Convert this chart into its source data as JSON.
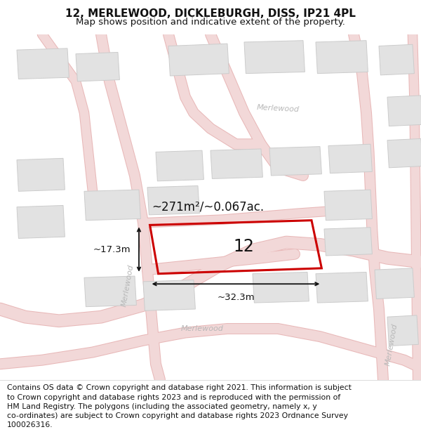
{
  "title": "12, MERLEWOOD, DICKLEBURGH, DISS, IP21 4PL",
  "subtitle": "Map shows position and indicative extent of the property.",
  "footer": "Contains OS data © Crown copyright and database right 2021. This information is subject\nto Crown copyright and database rights 2023 and is reproduced with the permission of\nHM Land Registry. The polygons (including the associated geometry, namely x, y\nco-ordinates) are subject to Crown copyright and database rights 2023 Ordnance Survey\n100026316.",
  "map_bg": "#f7f7f5",
  "road_fill": "#f2d8d8",
  "road_edge": "#e8b8b8",
  "building_fill": "#e2e2e2",
  "building_edge": "#cccccc",
  "plot_color": "#cc0000",
  "street_label_color": "#b8b8b8",
  "dim_color": "#111111",
  "area_text": "~271m²/~0.067ac.",
  "plot_label": "12",
  "dim_width": "~32.3m",
  "dim_height": "~17.3m",
  "title_fontsize": 11,
  "subtitle_fontsize": 9.5,
  "footer_fontsize": 7.8
}
